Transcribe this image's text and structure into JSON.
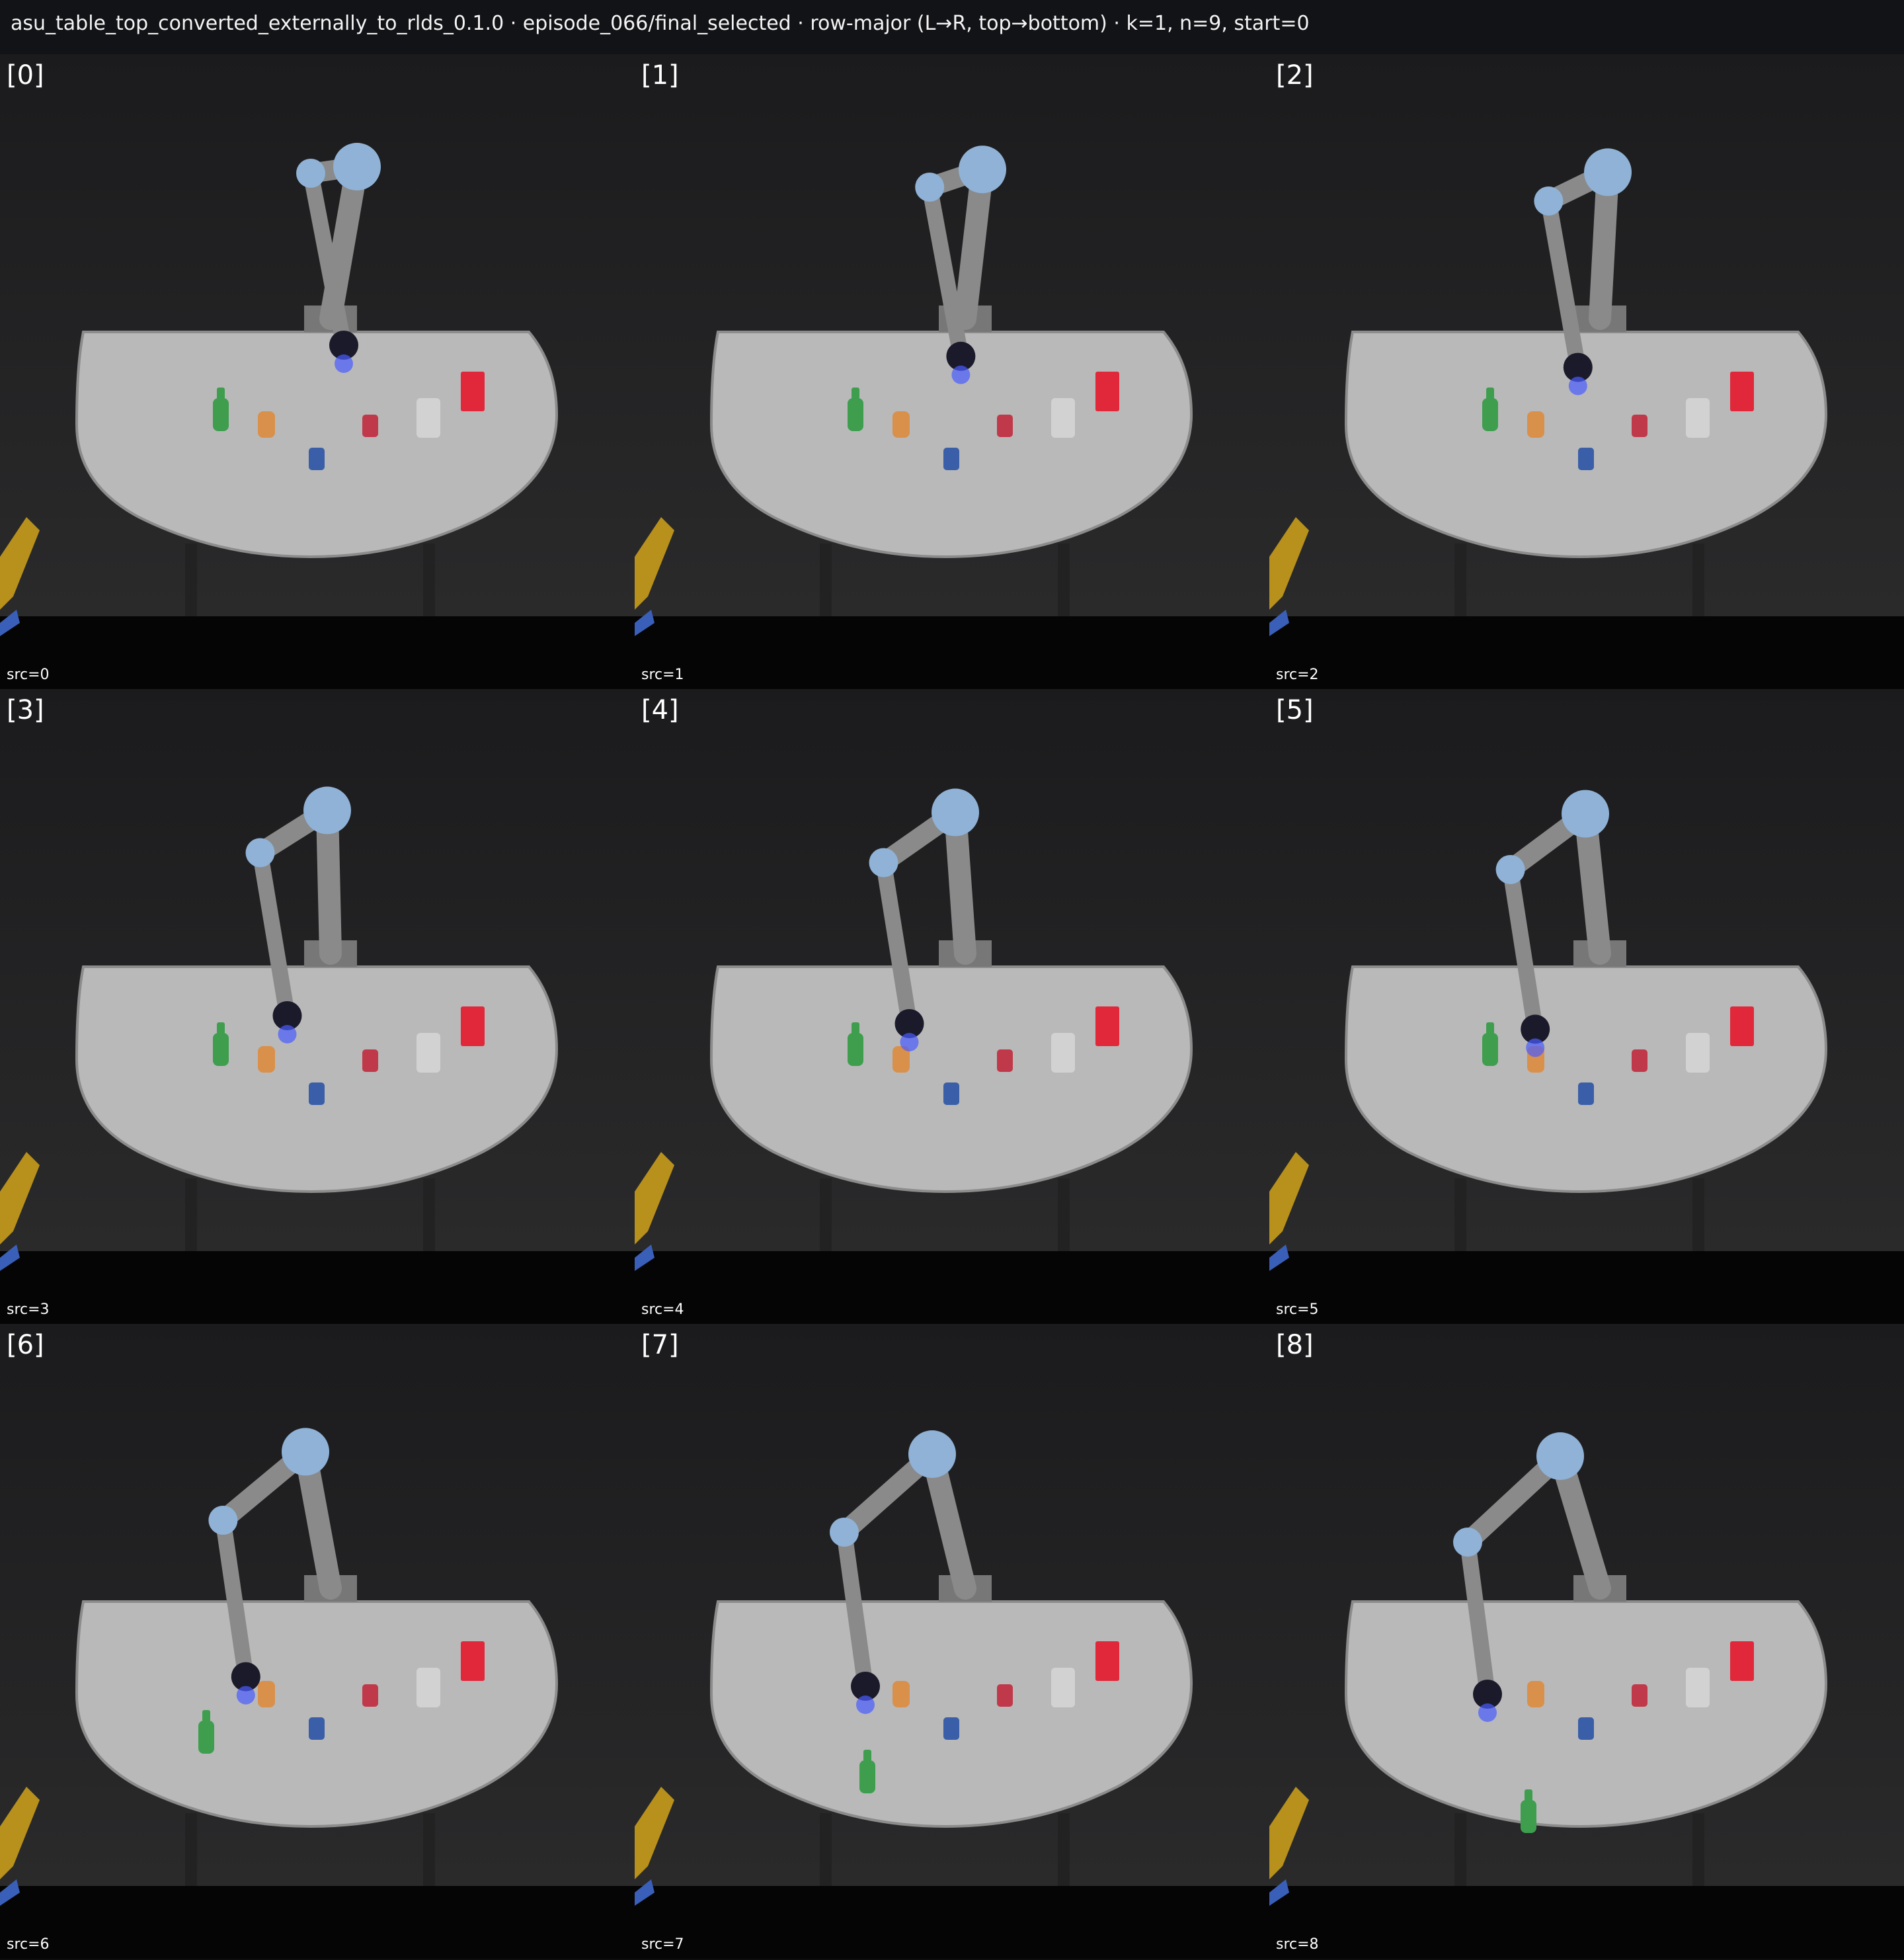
{
  "header": {
    "title": "asu_table_top_converted_externally_to_rlds_0.1.0 · episode_066/final_selected · row-major (L→R, top→bottom) · k=1, n=9, start=0"
  },
  "tiles": [
    {
      "index": "[0]",
      "src": "src=0",
      "arm": {
        "stage": 0.0
      },
      "bottle_held": false
    },
    {
      "index": "[1]",
      "src": "src=1",
      "arm": {
        "stage": 0.14
      },
      "bottle_held": false
    },
    {
      "index": "[2]",
      "src": "src=2",
      "arm": {
        "stage": 0.28
      },
      "bottle_held": false
    },
    {
      "index": "[3]",
      "src": "src=3",
      "arm": {
        "stage": 0.45
      },
      "bottle_held": false
    },
    {
      "index": "[4]",
      "src": "src=4",
      "arm": {
        "stage": 0.55
      },
      "bottle_held": false
    },
    {
      "index": "[5]",
      "src": "src=5",
      "arm": {
        "stage": 0.62
      },
      "bottle_held": false
    },
    {
      "index": "[6]",
      "src": "src=6",
      "arm": {
        "stage": 0.78
      },
      "bottle_held": true
    },
    {
      "index": "[7]",
      "src": "src=7",
      "arm": {
        "stage": 0.9
      },
      "bottle_held": true
    },
    {
      "index": "[8]",
      "src": "src=8",
      "arm": {
        "stage": 1.0
      },
      "bottle_held": true
    }
  ],
  "colors": {
    "background": "#0d0d0f",
    "table": "#b9b9b9",
    "arm_joint": "#8fb2d6",
    "arm_link": "#8a8a8a",
    "bottle_green": "#3e9e4e",
    "bottle_orange": "#d9904a",
    "can_blue": "#3a5fa8",
    "can_red": "#c0394a",
    "box_red": "#e0283a",
    "gripper_glow": "#4a5cff"
  },
  "objects": [
    "green-bottle",
    "orange-bottle",
    "blue-can",
    "red-can",
    "clear-cup",
    "red-box"
  ]
}
